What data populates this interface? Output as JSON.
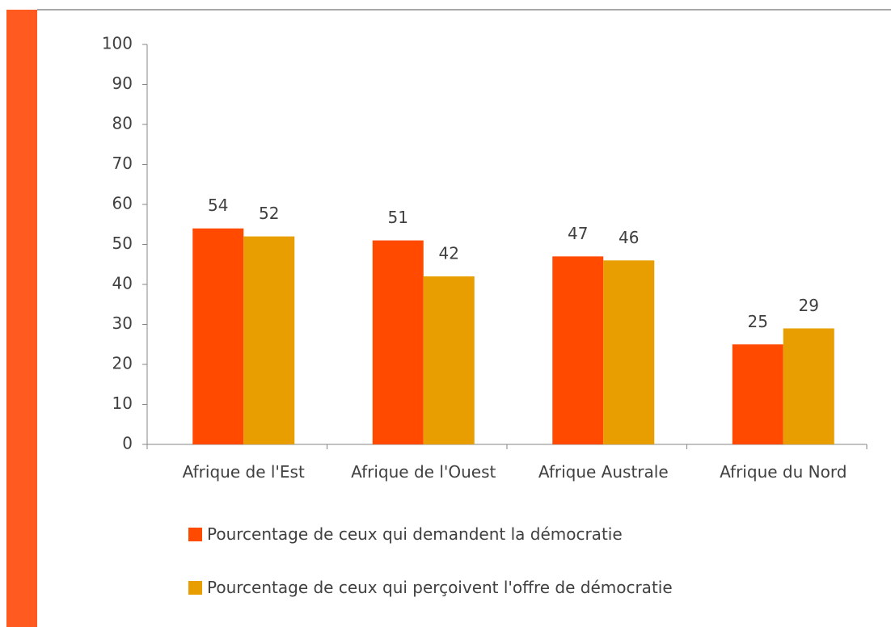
{
  "chart_data": {
    "type": "bar",
    "categories": [
      "Afrique de l'Est",
      "Afrique de l'Ouest",
      "Afrique Australe",
      "Afrique du Nord"
    ],
    "series": [
      {
        "name": "Pourcentage de ceux qui demandent la démocratie",
        "color": "#ff4a00",
        "values": [
          54,
          51,
          47,
          25
        ]
      },
      {
        "name": "Pourcentage de ceux qui perçoivent l'offre de démocratie",
        "color": "#e89e00",
        "values": [
          52,
          42,
          46,
          29
        ]
      }
    ],
    "ylim": [
      0,
      100
    ],
    "yticks": [
      0,
      10,
      20,
      30,
      40,
      50,
      60,
      70,
      80,
      90,
      100
    ],
    "legend": "bottom"
  }
}
